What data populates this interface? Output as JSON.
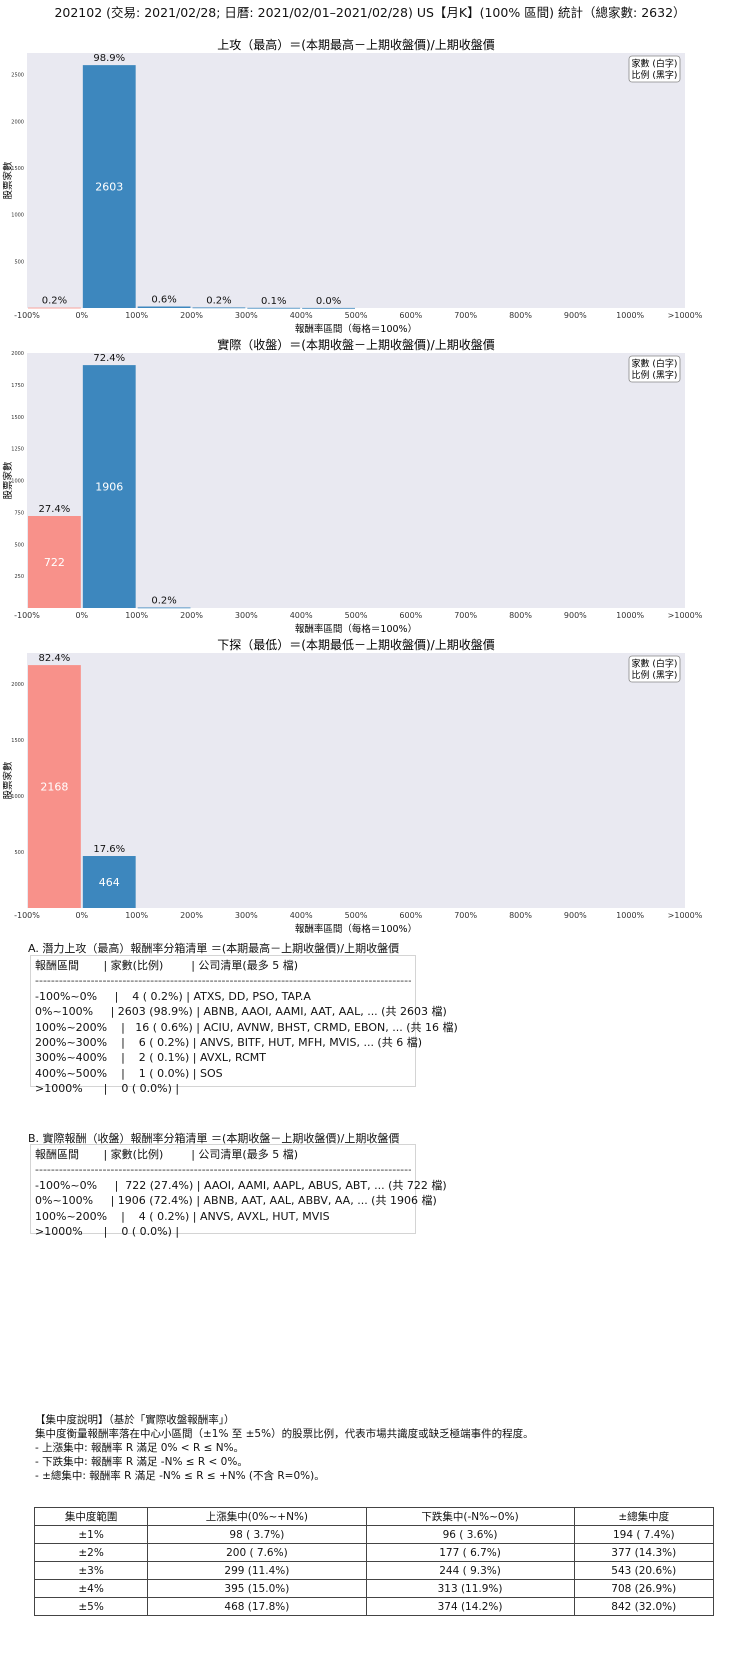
{
  "page_title": "202102 (交易: 2021/02/28; 日曆: 2021/02/01–2021/02/28) US【月K】(100% 區間) 統計（總家數: 2632）",
  "legend": {
    "line1": "家數 (白字)",
    "line2": "比例 (黑字)"
  },
  "colors": {
    "up_bar": "#3d87be",
    "down_bar": "#f8918a",
    "plot_bg": "#e9e9f1"
  },
  "chart_data": [
    {
      "type": "bar",
      "title": "上攻（最高）＝(本期最高－上期收盤價)/上期收盤價",
      "xlabel": "報酬率區間（每格＝100%）",
      "ylabel": "股票家數",
      "x_tick_labels": [
        "-100%",
        "0%",
        "100%",
        "200%",
        "300%",
        "400%",
        "500%",
        "600%",
        "700%",
        "800%",
        "900%",
        "1000%",
        ">1000%"
      ],
      "y_ticks": [
        500,
        1000,
        1500,
        2000,
        2500
      ],
      "ylim": [
        0,
        2733
      ],
      "legend_position": "top-right",
      "bins": [
        {
          "bin": "-100%~0%",
          "count": 4,
          "pct": "0.2%",
          "show_count": false
        },
        {
          "bin": "0%~100%",
          "count": 2603,
          "pct": "98.9%",
          "show_count": true
        },
        {
          "bin": "100%~200%",
          "count": 16,
          "pct": "0.6%",
          "show_count": false
        },
        {
          "bin": "200%~300%",
          "count": 6,
          "pct": "0.2%",
          "show_count": false
        },
        {
          "bin": "300%~400%",
          "count": 2,
          "pct": "0.1%",
          "show_count": false
        },
        {
          "bin": "400%~500%",
          "count": 1,
          "pct": "0.0%",
          "show_count": false
        }
      ]
    },
    {
      "type": "bar",
      "title": "實際（收盤）＝(本期收盤－上期收盤價)/上期收盤價",
      "xlabel": "報酬率區間（每格＝100%）",
      "ylabel": "股票家數",
      "x_tick_labels": [
        "-100%",
        "0%",
        "100%",
        "200%",
        "300%",
        "400%",
        "500%",
        "600%",
        "700%",
        "800%",
        "900%",
        "1000%",
        ">1000%"
      ],
      "y_ticks": [
        250,
        500,
        750,
        1000,
        1250,
        1500,
        1750,
        2000
      ],
      "ylim": [
        0,
        2001
      ],
      "legend_position": "top-right",
      "bins": [
        {
          "bin": "-100%~0%",
          "count": 722,
          "pct": "27.4%",
          "show_count": true
        },
        {
          "bin": "0%~100%",
          "count": 1906,
          "pct": "72.4%",
          "show_count": true
        },
        {
          "bin": "100%~200%",
          "count": 4,
          "pct": "0.2%",
          "show_count": false
        }
      ]
    },
    {
      "type": "bar",
      "title": "下探（最低）＝(本期最低－上期收盤價)/上期收盤價",
      "xlabel": "報酬率區間（每格＝100%）",
      "ylabel": "股票家數",
      "x_tick_labels": [
        "-100%",
        "0%",
        "100%",
        "200%",
        "300%",
        "400%",
        "500%",
        "600%",
        "700%",
        "800%",
        "900%",
        "1000%",
        ">1000%"
      ],
      "y_ticks": [
        500,
        1000,
        1500,
        2000
      ],
      "ylim": [
        0,
        2276
      ],
      "legend_position": "top-right",
      "bins": [
        {
          "bin": "-100%~0%",
          "count": 2168,
          "pct": "82.4%",
          "show_count": true
        },
        {
          "bin": "0%~100%",
          "count": 464,
          "pct": "17.6%",
          "show_count": true
        }
      ]
    }
  ],
  "list_a": {
    "title": "A. 潛力上攻（最高）報酬率分箱清單 ＝(本期最高－上期收盤價)/上期收盤價",
    "header": "報酬區間       | 家數(比例)        | 公司清單(最多 5 檔)",
    "separator": "------------------------------------------------------------------------------------------------------------------------",
    "rows": [
      "-100%~0%     |    4 ( 0.2%) | ATXS, DD, PSO, TAP.A",
      "0%~100%     | 2603 (98.9%) | ABNB, AAOI, AAMI, AAT, AAL, ... (共 2603 檔)",
      "100%~200%    |   16 ( 0.6%) | ACIU, AVNW, BHST, CRMD, EBON, ... (共 16 檔)",
      "200%~300%    |    6 ( 0.2%) | ANVS, BITF, HUT, MFH, MVIS, ... (共 6 檔)",
      "300%~400%    |    2 ( 0.1%) | AVXL, RCMT",
      "400%~500%    |    1 ( 0.0%) | SOS",
      ">1000%      |    0 ( 0.0%) |"
    ]
  },
  "list_b": {
    "title": "B. 實際報酬（收盤）報酬率分箱清單 ＝(本期收盤－上期收盤價)/上期收盤價",
    "header": "報酬區間       | 家數(比例)        | 公司清單(最多 5 檔)",
    "separator": "------------------------------------------------------------------------------------------------------------------------",
    "rows": [
      "-100%~0%     |  722 (27.4%) | AAOI, AAMI, AAPL, ABUS, ABT, ... (共 722 檔)",
      "0%~100%     | 1906 (72.4%) | ABNB, AAT, AAL, ABBV, AA, ... (共 1906 檔)",
      "100%~200%    |    4 ( 0.2%) | ANVS, AVXL, HUT, MVIS",
      ">1000%      |    0 ( 0.0%) |"
    ]
  },
  "concentration": {
    "heading": "【集中度說明】（基於「實際收盤報酬率」）",
    "desc": "集中度衡量報酬率落在中心小區間（±1% 至 ±5%）的股票比例，代表市場共識度或缺乏極端事件的程度。",
    "bullets": [
      "- 上漲集中: 報酬率 R 滿足 0% < R ≤ N%。",
      "- 下跌集中: 報酬率 R 滿足 -N% ≤ R < 0%。",
      "- ±總集中: 報酬率 R 滿足 -N% ≤ R ≤ +N% (不含 R=0%)。"
    ],
    "columns": [
      "集中度範圍",
      "上漲集中(0%~+N%)",
      "下跌集中(-N%~0%)",
      "±總集中度"
    ],
    "rows": [
      [
        "±1%",
        "98 ( 3.7%)",
        "96 ( 3.6%)",
        "194 ( 7.4%)"
      ],
      [
        "±2%",
        "200 ( 7.6%)",
        "177 ( 6.7%)",
        "377 (14.3%)"
      ],
      [
        "±3%",
        "299 (11.4%)",
        "244 ( 9.3%)",
        "543 (20.6%)"
      ],
      [
        "±4%",
        "395 (15.0%)",
        "313 (11.9%)",
        "708 (26.9%)"
      ],
      [
        "±5%",
        "468 (17.8%)",
        "374 (14.2%)",
        "842 (32.0%)"
      ]
    ]
  }
}
